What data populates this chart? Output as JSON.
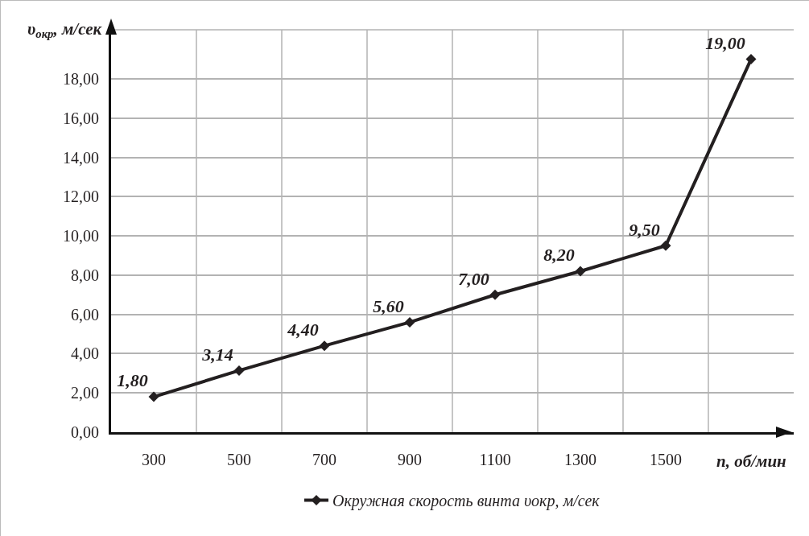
{
  "chart_data": {
    "type": "line",
    "xlabel": "n, об/мин",
    "ylabel": "υ$_{окр}$, м/сек",
    "categories": [
      "300",
      "500",
      "700",
      "900",
      "1100",
      "1300",
      "1500",
      null
    ],
    "series": [
      {
        "name": "Окружная скорость винта υокр, м/сек",
        "color": "#231f20",
        "values": [
          1.8,
          3.14,
          4.4,
          5.6,
          7.0,
          8.2,
          9.5,
          19.0
        ],
        "value_labels": [
          "1,80",
          "3,14",
          "4,40",
          "5,60",
          "7,00",
          "8,20",
          "9,50",
          "19,00"
        ]
      }
    ],
    "ylim": [
      0,
      20.5
    ],
    "yticks": [
      {
        "value": 0,
        "label": "0,00"
      },
      {
        "value": 2,
        "label": "2,00"
      },
      {
        "value": 4,
        "label": "4,00"
      },
      {
        "value": 6,
        "label": "6,00"
      },
      {
        "value": 8,
        "label": "8,00"
      },
      {
        "value": 10,
        "label": "10,00"
      },
      {
        "value": 12,
        "label": "12,00"
      },
      {
        "value": 14,
        "label": "14,00"
      },
      {
        "value": 16,
        "label": "16,00"
      },
      {
        "value": 18,
        "label": "18,00"
      }
    ],
    "grid": true,
    "legend": "bottom",
    "marker": "diamond",
    "line_style": "solid"
  }
}
